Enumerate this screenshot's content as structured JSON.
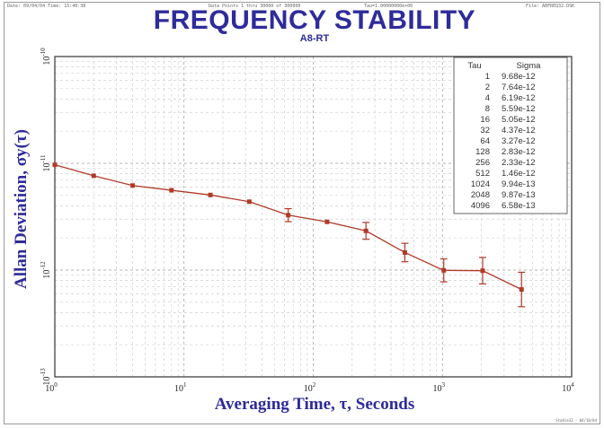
{
  "header": {
    "left": "Date: 09/04/04   Time: 15:40:38",
    "center": "Data Points 1 thru 30000 of 300000",
    "mid": "Tau=1.00000000e+00",
    "right": "File: ABFREQ32.DSK"
  },
  "footer": "Stable32 - 04/10/04",
  "chart_data": {
    "type": "scatter",
    "title": "FREQUENCY STABILITY",
    "subtitle": "A8-RT",
    "xlabel": "Averaging Time, τ, Seconds",
    "ylabel": "Allan Deviation, σy(τ)",
    "xscale": "log",
    "yscale": "log",
    "xlim": [
      1,
      10000
    ],
    "ylim": [
      1e-13,
      1e-10
    ],
    "grid": true,
    "x_ticks": [
      {
        "base": "10",
        "exp": "0"
      },
      {
        "base": "10",
        "exp": "1"
      },
      {
        "base": "10",
        "exp": "2"
      },
      {
        "base": "10",
        "exp": "3"
      },
      {
        "base": "10",
        "exp": "4"
      }
    ],
    "y_ticks": [
      {
        "base": "10",
        "exp": "-10"
      },
      {
        "base": "10",
        "exp": "-11"
      },
      {
        "base": "10",
        "exp": "-12"
      },
      {
        "base": "10",
        "exp": "-13"
      }
    ],
    "color": "#b03a28",
    "series": [
      {
        "x": [
          1,
          2,
          4,
          8,
          16,
          32,
          64,
          128,
          256,
          512,
          1024,
          2048,
          4096
        ],
        "y": [
          9.68e-12,
          7.64e-12,
          6.19e-12,
          5.59e-12,
          5.05e-12,
          4.37e-12,
          3.27e-12,
          2.83e-12,
          2.33e-12,
          1.46e-12,
          9.94e-13,
          9.87e-13,
          6.58e-13
        ],
        "err": [
          0,
          0,
          0,
          0,
          0,
          0,
          0.15,
          0,
          0.2,
          0.22,
          0.28,
          0.33,
          0.45
        ]
      }
    ],
    "legend_table": {
      "position": "top-right",
      "headers": [
        "Tau",
        "Sigma"
      ],
      "rows": [
        [
          "1",
          "9.68e-12"
        ],
        [
          "2",
          "7.64e-12"
        ],
        [
          "4",
          "6.19e-12"
        ],
        [
          "8",
          "5.59e-12"
        ],
        [
          "16",
          "5.05e-12"
        ],
        [
          "32",
          "4.37e-12"
        ],
        [
          "64",
          "3.27e-12"
        ],
        [
          "128",
          "2.83e-12"
        ],
        [
          "256",
          "2.33e-12"
        ],
        [
          "512",
          "1.46e-12"
        ],
        [
          "1024",
          "9.94e-13"
        ],
        [
          "2048",
          "9.87e-13"
        ],
        [
          "4096",
          "6.58e-13"
        ]
      ]
    }
  }
}
